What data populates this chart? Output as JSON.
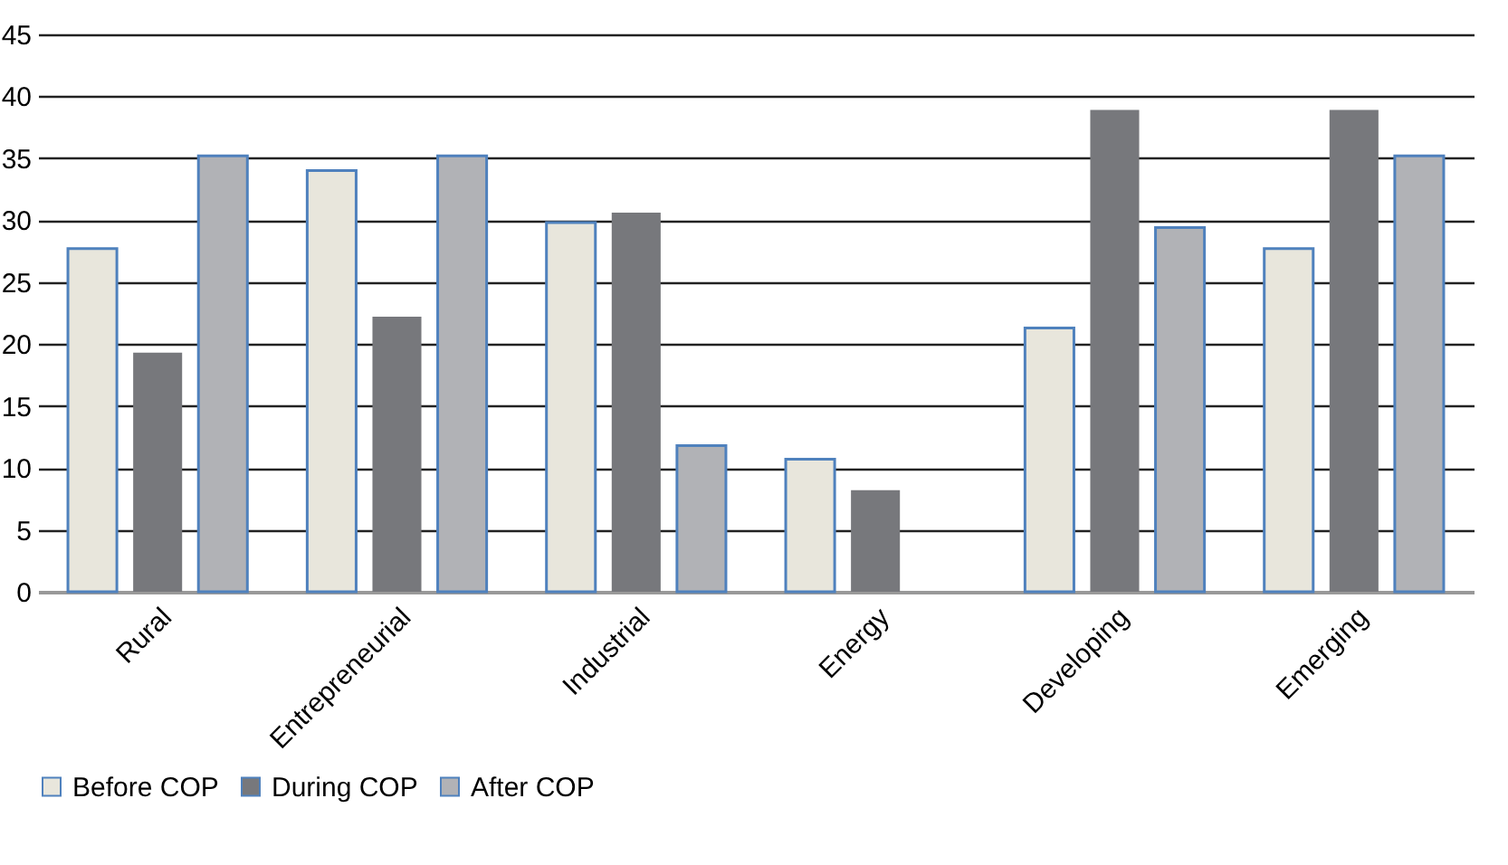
{
  "chart_data": {
    "type": "bar",
    "categories": [
      "Rural",
      "Entrepreneurial",
      "Industrial",
      "Energy",
      "Developing",
      "Emerging"
    ],
    "series": [
      {
        "name": "Before COP",
        "color": "#e8e6dc",
        "values": [
          27.7,
          34.0,
          29.8,
          10.7,
          21.3,
          27.7
        ]
      },
      {
        "name": "During COP",
        "color": "#77787c",
        "values": [
          19.3,
          22.2,
          30.6,
          8.2,
          38.9,
          38.9
        ]
      },
      {
        "name": "After COP",
        "color": "#b1b2b6",
        "values": [
          35.2,
          35.2,
          11.8,
          null,
          29.4,
          35.2
        ]
      }
    ],
    "ylim": [
      0,
      45
    ],
    "yticks": [
      0,
      5,
      10,
      15,
      20,
      25,
      30,
      35,
      40,
      45
    ],
    "grid": "y",
    "legend": "bottom"
  }
}
